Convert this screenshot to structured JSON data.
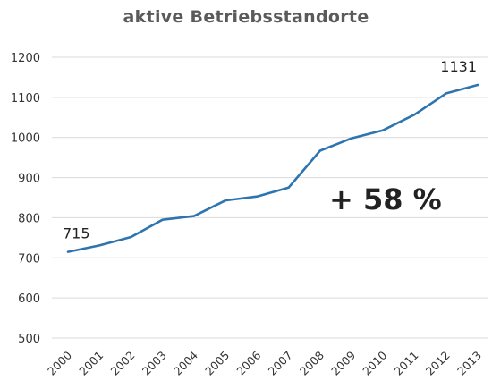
{
  "chart_data": {
    "type": "line",
    "title": "aktive Betriebsstandorte",
    "xlabel": "",
    "ylabel": "",
    "categories": [
      "2000",
      "2001",
      "2002",
      "2003",
      "2004",
      "2005",
      "2006",
      "2007",
      "2008",
      "2009",
      "2010",
      "2011",
      "2012",
      "2013"
    ],
    "series": [
      {
        "values": [
          715,
          731,
          752,
          795,
          804,
          843,
          853,
          875,
          967,
          998,
          1018,
          1057,
          1110,
          1131
        ],
        "color": "#2e75b0"
      }
    ],
    "ylim": [
      500,
      1200
    ],
    "yticks": [
      500,
      600,
      700,
      800,
      900,
      1000,
      1100,
      1200
    ],
    "grid": true,
    "legend": "none",
    "data_labels": [
      {
        "index": 0,
        "text": "715"
      },
      {
        "index": 13,
        "text": "1131"
      }
    ],
    "annotation": "+ 58 %"
  }
}
